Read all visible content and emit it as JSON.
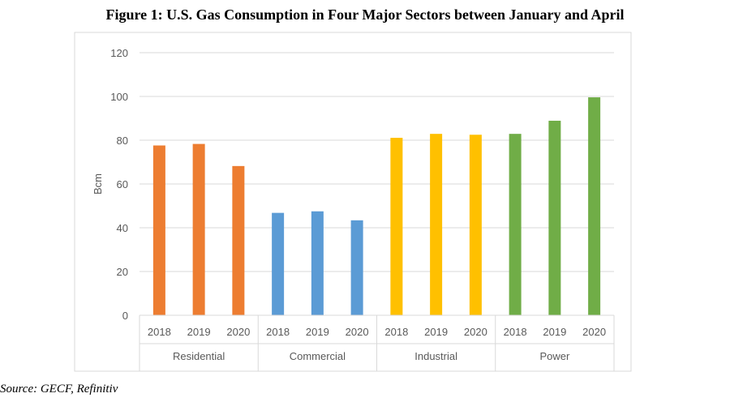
{
  "chart_data": {
    "type": "bar",
    "title": "Figure 1: U.S. Gas Consumption in Four Major Sectors between January and April",
    "source": "Source: GECF, Refinitiv",
    "ylabel": "Bcm",
    "xlabel": "",
    "ylim": [
      0,
      120
    ],
    "yticks": [
      "0",
      "20",
      "40",
      "60",
      "80",
      "100",
      "120"
    ],
    "grid": true,
    "groups": [
      {
        "name": "Residential",
        "color": "#ED7D31",
        "categories": [
          "2018",
          "2019",
          "2020"
        ],
        "values": [
          77.6,
          78.3,
          68.2
        ]
      },
      {
        "name": "Commercial",
        "color": "#5B9BD5",
        "categories": [
          "2018",
          "2019",
          "2020"
        ],
        "values": [
          46.8,
          47.5,
          43.4
        ]
      },
      {
        "name": "Industrial",
        "color": "#FFC000",
        "categories": [
          "2018",
          "2019",
          "2020"
        ],
        "values": [
          81.1,
          82.9,
          82.5
        ]
      },
      {
        "name": "Power",
        "color": "#70AD47",
        "categories": [
          "2018",
          "2019",
          "2020"
        ],
        "values": [
          82.9,
          88.9,
          99.6
        ]
      }
    ]
  }
}
